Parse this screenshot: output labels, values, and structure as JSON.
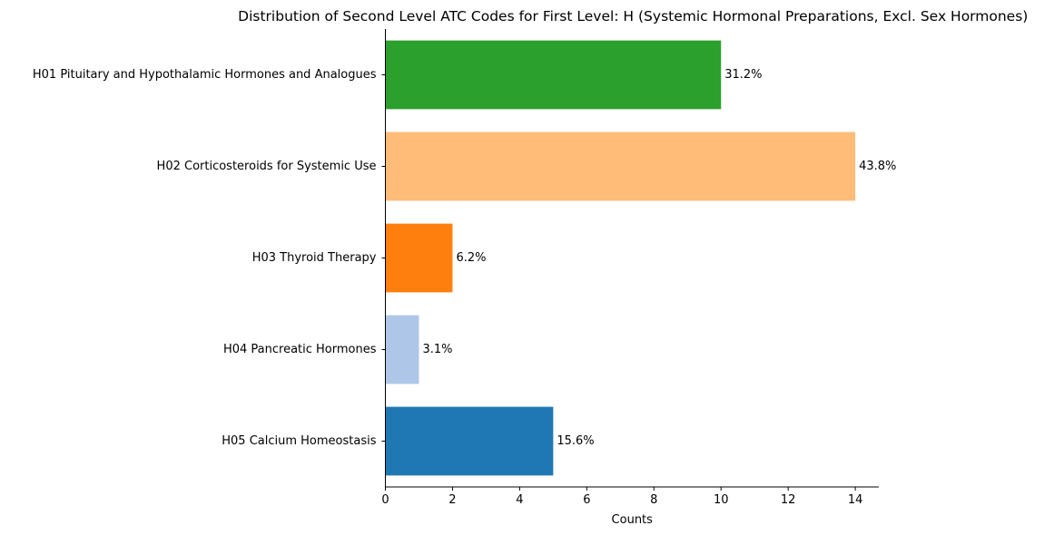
{
  "chart_data": {
    "type": "bar",
    "orientation": "horizontal",
    "title": "Distribution of Second Level ATC Codes for First Level: H (Systemic Hormonal Preparations, Excl. Sex Hormones)",
    "xlabel": "Counts",
    "ylabel": "",
    "xlim": [
      0,
      14.7
    ],
    "xticks": [
      "0",
      "2",
      "4",
      "6",
      "8",
      "10",
      "12",
      "14"
    ],
    "categories": [
      "H01 Pituitary and Hypothalamic Hormones and Analogues",
      "H02 Corticosteroids for Systemic Use",
      "H03 Thyroid Therapy",
      "H04 Pancreatic Hormones",
      "H05 Calcium Homeostasis"
    ],
    "values": [
      10,
      14,
      2,
      1,
      5
    ],
    "data_labels": [
      "31.2%",
      "43.8%",
      "6.2%",
      "3.1%",
      "15.6%"
    ],
    "colors": [
      "#2ca02c",
      "#ffbb78",
      "#ff7f0e",
      "#aec7e8",
      "#1f77b4"
    ],
    "grid": false,
    "legend": "none"
  }
}
